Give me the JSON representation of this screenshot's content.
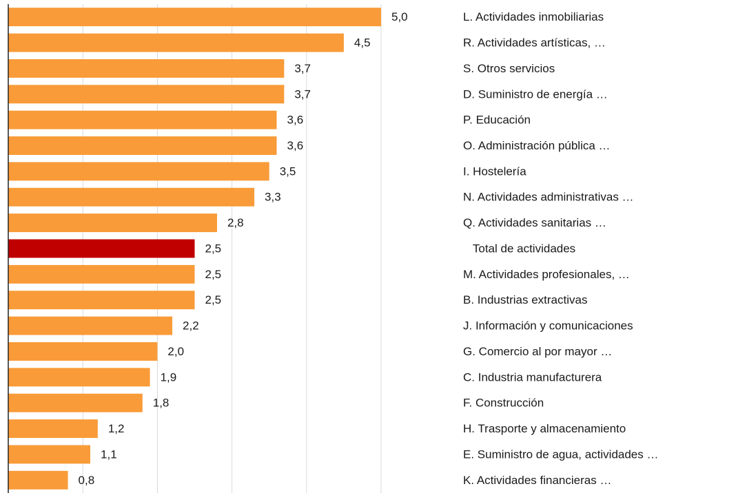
{
  "chart_data": {
    "type": "barh",
    "categories": [
      "L. Actividades inmobiliarias",
      "R. Actividades artísticas, …",
      "S. Otros servicios",
      "D. Suministro de energía …",
      "P. Educación",
      "O. Administración pública …",
      "I. Hostelería",
      "N. Actividades administrativas …",
      "Q. Actividades sanitarias …",
      "   Total de actividades",
      "M. Actividades profesionales, …",
      "B. Industrias extractivas",
      "J. Información y comunicaciones",
      "G. Comercio al por mayor …",
      "C. Industria manufacturera",
      "F. Construcción",
      "H. Trasporte y almacenamiento",
      "E. Suministro de agua, actividades …",
      "K. Actividades financieras …"
    ],
    "values": [
      5.0,
      4.5,
      3.7,
      3.7,
      3.6,
      3.6,
      3.5,
      3.3,
      2.8,
      2.5,
      2.5,
      2.5,
      2.2,
      2.0,
      1.9,
      1.8,
      1.2,
      1.1,
      0.8
    ],
    "value_labels": [
      "5,0",
      "4,5",
      "3,7",
      "3,7",
      "3,6",
      "3,6",
      "3,5",
      "3,3",
      "2,8",
      "2,5",
      "2,5",
      "2,5",
      "2,2",
      "2,0",
      "1,9",
      "1,8",
      "1,2",
      "1,1",
      "0,8"
    ],
    "colors": [
      "#f99b38",
      "#f99b38",
      "#f99b38",
      "#f99b38",
      "#f99b38",
      "#f99b38",
      "#f99b38",
      "#f99b38",
      "#f99b38",
      "#c00000",
      "#f99b38",
      "#f99b38",
      "#f99b38",
      "#f99b38",
      "#f99b38",
      "#f99b38",
      "#f99b38",
      "#f99b38",
      "#f99b38"
    ],
    "xlim": [
      0,
      5
    ],
    "xticks": [
      0,
      1,
      2,
      3,
      4,
      5
    ],
    "grid": true
  }
}
